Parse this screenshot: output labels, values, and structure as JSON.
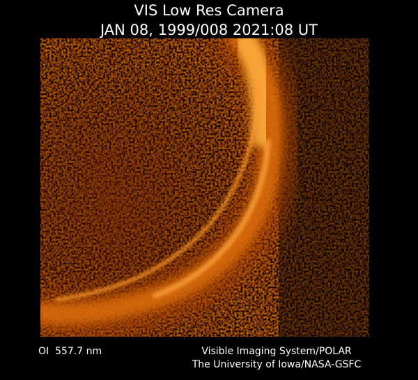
{
  "header": {
    "title": "VIS Low Res Camera",
    "timestamp": "JAN 08, 1999/008 2021:08 UT"
  },
  "footer": {
    "filter": "OI  557.7 nm",
    "instrument": "Visible Imaging System/POLAR",
    "credit": "The University of Iowa/NASA-GSFC"
  }
}
